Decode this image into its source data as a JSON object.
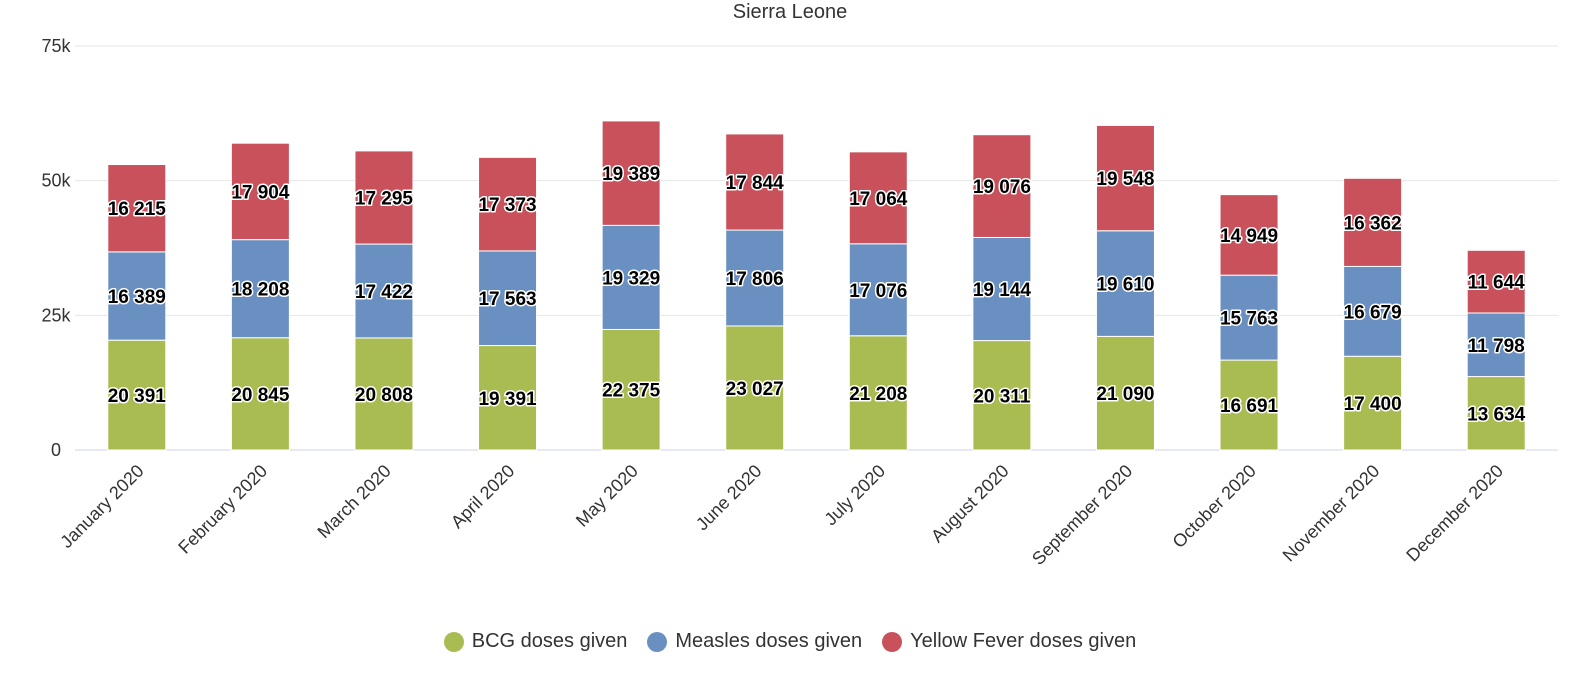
{
  "chart_data": {
    "type": "bar",
    "stacked": true,
    "title": "Sierra Leone",
    "xlabel": "",
    "ylabel": "",
    "categories": [
      "January 2020",
      "February 2020",
      "March 2020",
      "April 2020",
      "May 2020",
      "June 2020",
      "July 2020",
      "August 2020",
      "September 2020",
      "October 2020",
      "November 2020",
      "December 2020"
    ],
    "series": [
      {
        "name": "BCG doses given",
        "color": "#a9bc51",
        "values": [
          20391,
          20845,
          20808,
          19391,
          22375,
          23027,
          21208,
          20311,
          21090,
          16691,
          17400,
          13634
        ]
      },
      {
        "name": "Measles doses given",
        "color": "#6a90c1",
        "values": [
          16389,
          18208,
          17422,
          17563,
          19329,
          17806,
          17076,
          19144,
          19610,
          15763,
          16679,
          11798
        ]
      },
      {
        "name": "Yellow Fever doses given",
        "color": "#c9515b",
        "values": [
          16215,
          17904,
          17295,
          17373,
          19389,
          17844,
          17064,
          19076,
          19548,
          14949,
          16362,
          11644
        ]
      }
    ],
    "data_labels": [
      [
        "20 391",
        "20 845",
        "20 808",
        "19 391",
        "22 375",
        "23 027",
        "21 208",
        "20 311",
        "21 090",
        "16 691",
        "17 400",
        "13 634"
      ],
      [
        "16 389",
        "18 208",
        "17 422",
        "17 563",
        "19 329",
        "17 806",
        "17 076",
        "19 144",
        "19 610",
        "15 763",
        "16 679",
        "11 798"
      ],
      [
        "16 215",
        "17 904",
        "17 295",
        "17 373",
        "19 389",
        "17 844",
        "17 064",
        "19 076",
        "19 548",
        "14 949",
        "16 362",
        "11 644"
      ]
    ],
    "ylim": [
      0,
      75000
    ],
    "yticks": [
      0,
      25000,
      50000,
      75000
    ],
    "ytick_labels": [
      "0",
      "25k",
      "50k",
      "75k"
    ],
    "grid": true,
    "legend_position": "bottom-center"
  }
}
